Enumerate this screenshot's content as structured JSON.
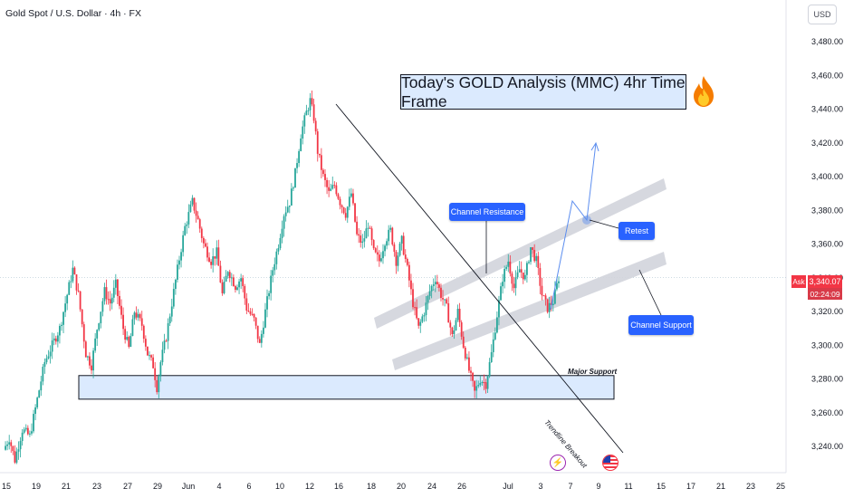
{
  "header": {
    "symbol_title": "Gold Spot / U.S. Dollar · 4h · FX"
  },
  "currency_label": "USD",
  "annotations": {
    "title": "Today's GOLD Analysis (MMC) 4hr Time Frame",
    "fire_icon": "fire-icon",
    "channel_resistance": "Channel Resistance",
    "channel_support": "Channel Support",
    "retest": "Retest",
    "major_support": "Major Support",
    "trendline_breakout": "Trendline Breakout"
  },
  "price_tag": {
    "side": "Ask",
    "price": "3,340.07",
    "countdown": "02:24:09"
  },
  "events": [
    {
      "icon": "lightning-icon",
      "color": "#9c27b0"
    },
    {
      "icon": "us-flag-icon",
      "color": "#f23645"
    }
  ],
  "colors": {
    "bull": "#26a69a",
    "bear": "#f23645",
    "support_zone": "#dbeafe",
    "channel": "#d1d4dc",
    "callout": "#2962ff"
  },
  "chart_data": {
    "type": "candlestick",
    "timeframe": "4h",
    "y_range": [
      3228,
      3496
    ],
    "y_ticks": [
      3240,
      3260,
      3280,
      3300,
      3320,
      3340,
      3360,
      3380,
      3400,
      3420,
      3440,
      3460,
      3480
    ],
    "y_tick_labels": [
      "3,240.00",
      "3,260.00",
      "3,280.00",
      "3,300.00",
      "3,320.00",
      "3,340.00",
      "3,360.00",
      "3,380.00",
      "3,400.00",
      "3,420.00",
      "3,440.00",
      "3,460.00",
      "3,480.00"
    ],
    "x_tick_labels": [
      "15",
      "19",
      "21",
      "23",
      "27",
      "29",
      "Jun",
      "4",
      "6",
      "10",
      "12",
      "16",
      "18",
      "20",
      "24",
      "26",
      "Jul",
      "3",
      "7",
      "9",
      "11",
      "15",
      "17",
      "21",
      "23",
      "25"
    ],
    "price_path": [
      [
        0,
        3238
      ],
      [
        3,
        3245
      ],
      [
        6,
        3232
      ],
      [
        10,
        3250
      ],
      [
        14,
        3246
      ],
      [
        18,
        3268
      ],
      [
        22,
        3290
      ],
      [
        26,
        3300
      ],
      [
        30,
        3310
      ],
      [
        33,
        3325
      ],
      [
        37,
        3345
      ],
      [
        40,
        3330
      ],
      [
        44,
        3295
      ],
      [
        47,
        3288
      ],
      [
        50,
        3310
      ],
      [
        54,
        3332
      ],
      [
        57,
        3325
      ],
      [
        60,
        3336
      ],
      [
        64,
        3310
      ],
      [
        67,
        3298
      ],
      [
        70,
        3320
      ],
      [
        74,
        3312
      ],
      [
        77,
        3295
      ],
      [
        80,
        3288
      ],
      [
        82,
        3275
      ],
      [
        84,
        3290
      ],
      [
        87,
        3305
      ],
      [
        90,
        3325
      ],
      [
        93,
        3345
      ],
      [
        97,
        3370
      ],
      [
        101,
        3385
      ],
      [
        104,
        3374
      ],
      [
        107,
        3360
      ],
      [
        111,
        3350
      ],
      [
        114,
        3355
      ],
      [
        117,
        3330
      ],
      [
        120,
        3345
      ],
      [
        124,
        3335
      ],
      [
        127,
        3340
      ],
      [
        130,
        3322
      ],
      [
        134,
        3315
      ],
      [
        137,
        3300
      ],
      [
        140,
        3320
      ],
      [
        144,
        3345
      ],
      [
        147,
        3360
      ],
      [
        150,
        3378
      ],
      [
        153,
        3385
      ],
      [
        156,
        3402
      ],
      [
        159,
        3425
      ],
      [
        162,
        3438
      ],
      [
        164,
        3445
      ],
      [
        166,
        3435
      ],
      [
        168,
        3415
      ],
      [
        171,
        3400
      ],
      [
        174,
        3390
      ],
      [
        177,
        3395
      ],
      [
        180,
        3385
      ],
      [
        183,
        3378
      ],
      [
        186,
        3390
      ],
      [
        189,
        3365
      ],
      [
        192,
        3360
      ],
      [
        195,
        3372
      ],
      [
        198,
        3355
      ],
      [
        201,
        3350
      ],
      [
        204,
        3362
      ],
      [
        207,
        3368
      ],
      [
        210,
        3350
      ],
      [
        213,
        3362
      ],
      [
        216,
        3345
      ],
      [
        219,
        3325
      ],
      [
        222,
        3310
      ],
      [
        225,
        3320
      ],
      [
        228,
        3332
      ],
      [
        231,
        3340
      ],
      [
        234,
        3330
      ],
      [
        237,
        3322
      ],
      [
        240,
        3305
      ],
      [
        243,
        3320
      ],
      [
        246,
        3300
      ],
      [
        249,
        3285
      ],
      [
        252,
        3272
      ],
      [
        255,
        3280
      ],
      [
        258,
        3277
      ],
      [
        261,
        3295
      ],
      [
        264,
        3318
      ],
      [
        267,
        3340
      ],
      [
        270,
        3350
      ],
      [
        273,
        3334
      ],
      [
        276,
        3345
      ],
      [
        279,
        3340
      ],
      [
        282,
        3358
      ],
      [
        285,
        3350
      ],
      [
        288,
        3330
      ],
      [
        291,
        3322
      ],
      [
        294,
        3326
      ],
      [
        297,
        3340
      ]
    ],
    "horizontal_zones": [
      {
        "label": "Major Support",
        "from": 3268,
        "to": 3282
      }
    ],
    "last_price": 3340.07
  }
}
